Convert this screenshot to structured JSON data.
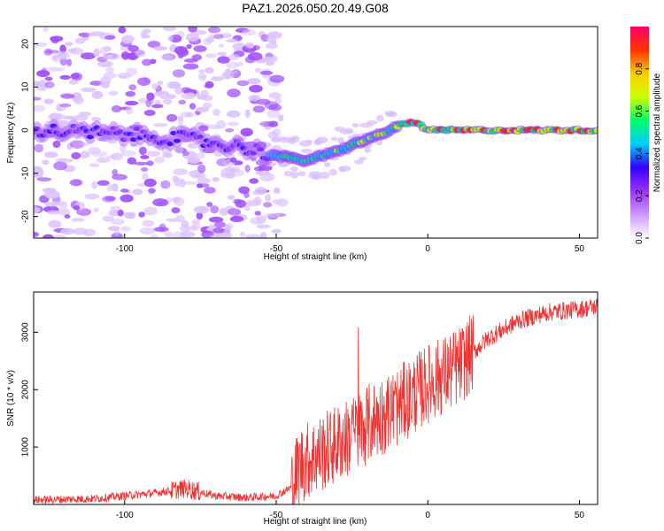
{
  "figure_title": "PAZ1.2026.050.20.49.G08",
  "chart_data": [
    {
      "type": "heatmap",
      "title": "PAZ1.2026.050.20.49.G08",
      "xlabel": "Height of straight line (km)",
      "ylabel": "Frequency (Hz)",
      "xlim": [
        -130,
        56
      ],
      "ylim": [
        -25,
        24
      ],
      "xticks": [
        -100,
        -50,
        0,
        50
      ],
      "yticks": [
        -20,
        -10,
        0,
        10,
        20
      ],
      "colorbar": {
        "label": "Normalized spectral amplitude",
        "range": [
          0.0,
          1.0
        ],
        "ticks": [
          0.0,
          0.2,
          0.4,
          0.6,
          0.8
        ],
        "colormap": [
          "#ffffff",
          "#cc99ff",
          "#9933ff",
          "#3300ff",
          "#00ccff",
          "#00ff66",
          "#ccff00",
          "#ffcc00",
          "#ff3300",
          "#ff0066"
        ]
      },
      "ridge": {
        "x": [
          -130,
          -100,
          -80,
          -60,
          -50,
          -40,
          -30,
          -20,
          -15,
          -10,
          -5,
          0,
          10,
          20,
          30,
          40,
          56
        ],
        "frequency": [
          0,
          -1,
          -2,
          -4,
          -6,
          -7,
          -5,
          -2,
          -1,
          1,
          2,
          0,
          0,
          0,
          0,
          0,
          0
        ]
      }
    },
    {
      "type": "line",
      "xlabel": "Height of straight line (km)",
      "ylabel": "SNR (10 * v/v)",
      "xlim": [
        -130,
        56
      ],
      "ylim": [
        0,
        3700
      ],
      "xticks": [
        -100,
        -50,
        0,
        50
      ],
      "yticks": [
        1000,
        2000,
        3000
      ],
      "color": "#ee3333",
      "trend": {
        "x": [
          -130,
          -110,
          -90,
          -80,
          -70,
          -60,
          -50,
          -45,
          -42,
          -35,
          -25,
          -20,
          -10,
          0,
          10,
          20,
          30,
          40,
          50,
          56
        ],
        "y": [
          80,
          100,
          200,
          280,
          150,
          120,
          150,
          300,
          700,
          900,
          1200,
          1400,
          1700,
          2100,
          2400,
          2900,
          3200,
          3350,
          3400,
          3450
        ]
      }
    }
  ]
}
